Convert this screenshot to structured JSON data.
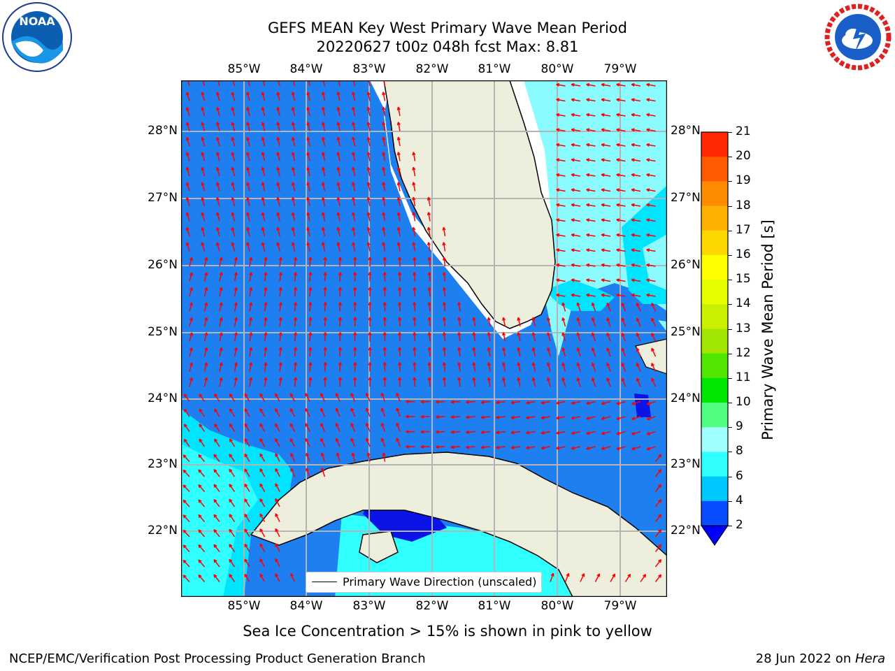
{
  "header": {
    "title_line1": "GEFS MEAN Key West Primary Wave Mean Period",
    "title_line2": "20220627 t00z 048h fcst   Max: 8.81"
  },
  "logos": {
    "left": "NOAA",
    "left_ring_text": "NATIONAL OCEANIC AND ATMOSPHERIC ADMINISTRATION · U.S. DEPARTMENT OF COMMERCE",
    "right_ring_text": "NATIONAL WEATHER SERVICE"
  },
  "map": {
    "lon_ticks": [
      "85°W",
      "84°W",
      "83°W",
      "82°W",
      "81°W",
      "80°W",
      "79°W"
    ],
    "lat_ticks": [
      "28°N",
      "27°N",
      "26°N",
      "25°N",
      "24°N",
      "23°N",
      "22°N"
    ],
    "legend_label": "Primary Wave Direction (unscaled)",
    "colors": {
      "ocean_low": "#1e7ff0",
      "ocean_mid": "#00e5ff",
      "ocean_light": "#8afcff",
      "deep": "#0a14e6",
      "land": "#eeeedd",
      "arrow": "#ff0000",
      "grid": "#b4b4b4"
    }
  },
  "colorbar": {
    "label": "Primary Wave Mean Period [s]",
    "ticks": [
      "2",
      "4",
      "6",
      "8",
      "9",
      "10",
      "11",
      "12",
      "13",
      "14",
      "15",
      "16",
      "17",
      "18",
      "19",
      "20",
      "21"
    ],
    "colors": [
      "#0a4cff",
      "#00c8ff",
      "#30ffff",
      "#a0ffff",
      "#50ff80",
      "#00e600",
      "#50e600",
      "#a0e600",
      "#c8f000",
      "#e6ff00",
      "#ffff00",
      "#ffd700",
      "#ffb000",
      "#ff8c00",
      "#ff5a00",
      "#ff2800"
    ]
  },
  "notes": {
    "sea_ice": "Sea Ice Concentration > 15% is shown in pink to yellow",
    "credit_left": "NCEP/EMC/Verification Post Processing Product Generation Branch",
    "credit_date": "28 Jun 2022 on ",
    "credit_host": "Hera"
  }
}
